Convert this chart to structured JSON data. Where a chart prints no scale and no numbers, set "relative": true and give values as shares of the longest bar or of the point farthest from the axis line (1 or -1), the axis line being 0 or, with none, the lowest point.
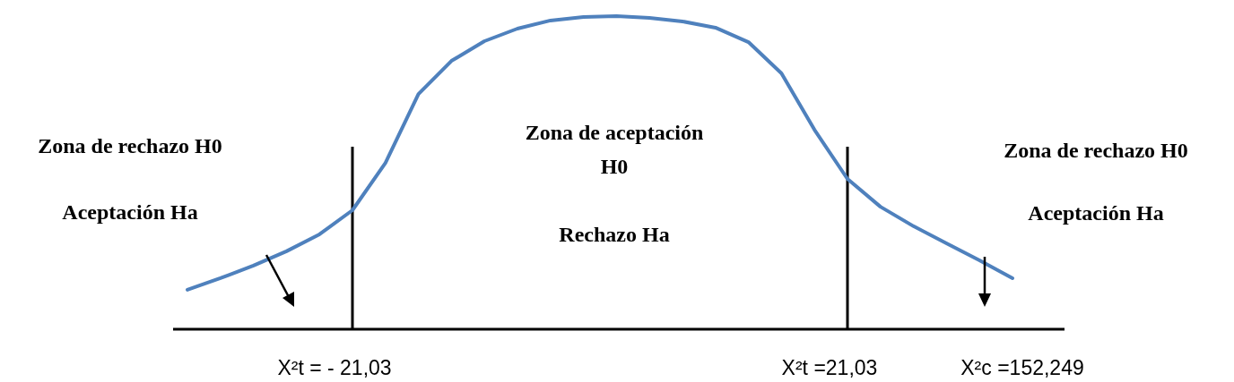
{
  "chart_data": {
    "type": "line",
    "relative": true,
    "categories": [
      null,
      null,
      null,
      null,
      null,
      null,
      null,
      null,
      null,
      null,
      null,
      null,
      null,
      null,
      null,
      null,
      null,
      null,
      null,
      null,
      null,
      null,
      null,
      null,
      null,
      null
    ],
    "series": [
      {
        "color": "#4f81bd",
        "values": [
          0.126,
          0.163,
          0.203,
          0.249,
          0.303,
          0.38,
          0.531,
          0.751,
          0.857,
          0.92,
          0.96,
          0.986,
          0.997,
          1,
          0.994,
          0.983,
          0.963,
          0.917,
          0.817,
          0.637,
          0.48,
          0.391,
          0.329,
          0.274,
          0.22,
          0.163
        ]
      }
    ],
    "annotations": [
      "Zona de rechazo H0",
      "Aceptación Ha",
      "Zona de aceptación H0",
      "Rechazo Ha",
      "Zona de rechazo H0",
      "Aceptación Ha",
      "X²c =152,249",
      "X²t = - 21,03",
      "X²t =21,03"
    ]
  }
}
